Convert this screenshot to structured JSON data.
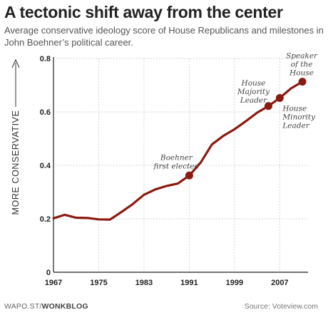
{
  "header": {
    "title": "A tectonic shift away from the center",
    "subtitle": "Average conservative ideology score of House Republicans and milestones in John Boehner’s political career."
  },
  "footer": {
    "credit_prefix": "WAPO.ST/",
    "credit_brand": "WONKBLOG",
    "source": "Source: Voteview.com"
  },
  "colors": {
    "line": "#8b1a10",
    "grid": "#c8c8c8",
    "axis": "#222222",
    "text": "#222222"
  },
  "chart_data": {
    "type": "line",
    "title": "A tectonic shift away from the center",
    "ylabel": "MORE CONSERVATIVE",
    "xlabel": "",
    "xlim": [
      1967,
      2012
    ],
    "ylim": [
      0,
      0.8
    ],
    "x_ticks": [
      "1967",
      "1975",
      "1983",
      "1991",
      "1999",
      "2007"
    ],
    "x_tick_values": [
      1967,
      1975,
      1983,
      1991,
      1999,
      2007
    ],
    "y_ticks": [
      "0",
      "0.2",
      "0.4",
      "0.6",
      "0.8"
    ],
    "y_tick_values": [
      0,
      0.2,
      0.4,
      0.6,
      0.8
    ],
    "grid": true,
    "series": [
      {
        "x": [
          1967,
          1969,
          1971,
          1973,
          1975,
          1977,
          1979,
          1981,
          1983,
          1985,
          1987,
          1989,
          1991,
          1993,
          1995,
          1997,
          1999,
          2001,
          2003,
          2005,
          2007,
          2009,
          2011
        ],
        "values": [
          0.202,
          0.215,
          0.204,
          0.203,
          0.198,
          0.197,
          0.225,
          0.255,
          0.29,
          0.31,
          0.323,
          0.332,
          0.362,
          0.41,
          0.478,
          0.51,
          0.535,
          0.565,
          0.597,
          0.622,
          0.652,
          0.688,
          0.713
        ]
      }
    ],
    "milestones": [
      {
        "x": 1991,
        "y": 0.362,
        "label": [
          "Boehner",
          "first elected"
        ]
      },
      {
        "x": 2005,
        "y": 0.622,
        "label": [
          "House",
          "Majority",
          "Leader"
        ]
      },
      {
        "x": 2007,
        "y": 0.652,
        "label": [
          "House",
          "Minority",
          "Leader"
        ]
      },
      {
        "x": 2011,
        "y": 0.713,
        "label": [
          "Speaker",
          "of the",
          "House"
        ]
      }
    ]
  }
}
